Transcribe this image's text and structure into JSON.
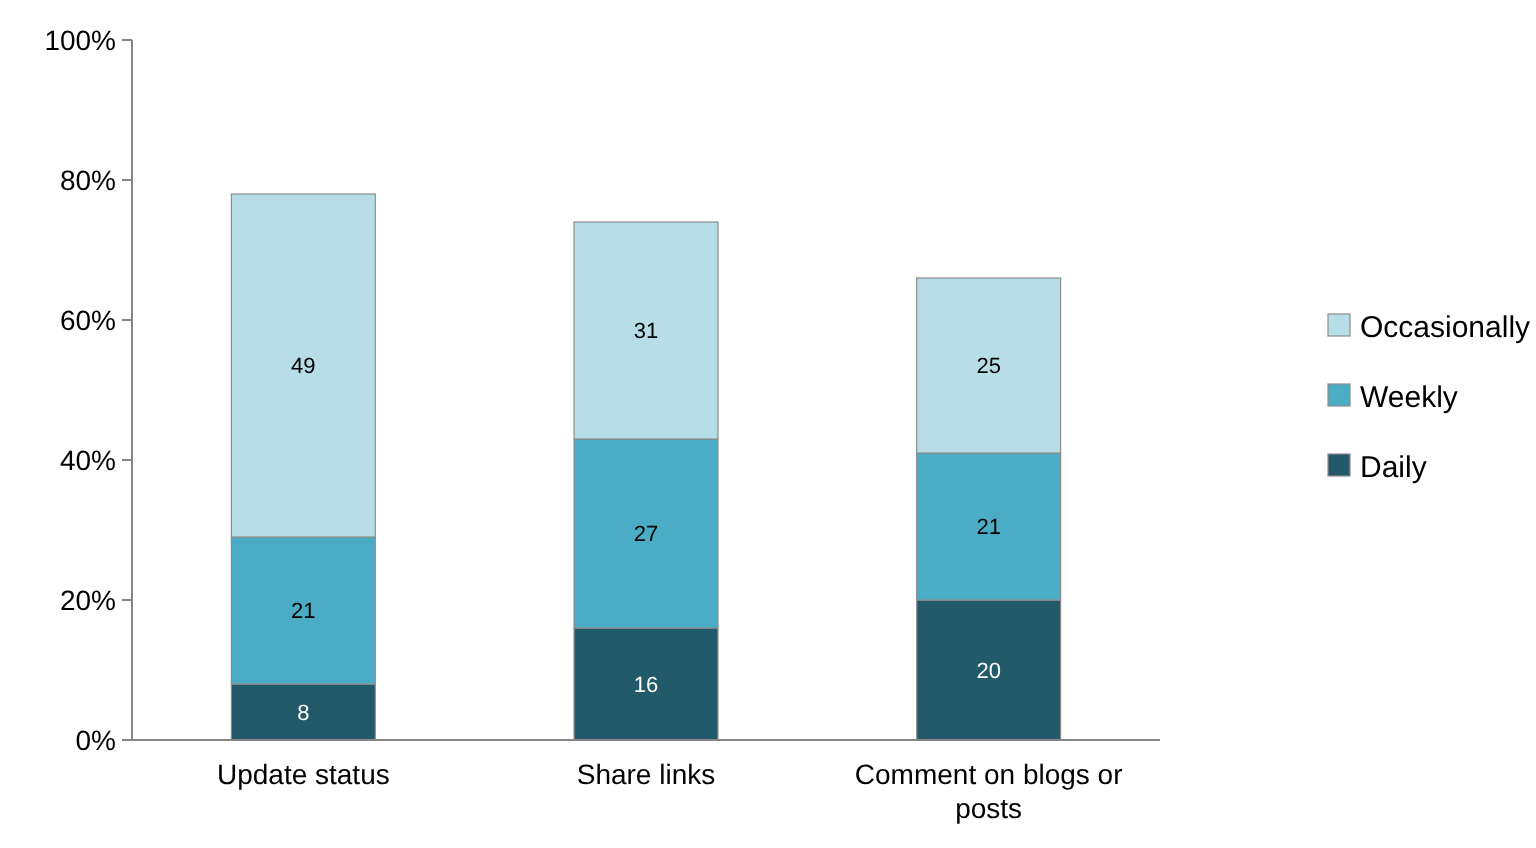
{
  "chart_data": {
    "type": "bar",
    "stacked": true,
    "categories": [
      "Update status",
      "Share links",
      "Comment on blogs or posts"
    ],
    "series": [
      {
        "name": "Daily",
        "color": "#235a6a",
        "values": [
          8,
          16,
          20
        ]
      },
      {
        "name": "Weekly",
        "color": "#4bacc6",
        "values": [
          21,
          27,
          21
        ]
      },
      {
        "name": "Occasionally",
        "color": "#b7dee8",
        "values": [
          49,
          31,
          25
        ]
      }
    ],
    "ylim": [
      0,
      100
    ],
    "yticks": [
      {
        "value": 0,
        "label": "0%"
      },
      {
        "value": 20,
        "label": "20%"
      },
      {
        "value": 40,
        "label": "40%"
      },
      {
        "value": 60,
        "label": "60%"
      },
      {
        "value": 80,
        "label": "80%"
      },
      {
        "value": 100,
        "label": "100%"
      }
    ],
    "data_labels": true,
    "legend": "right"
  }
}
